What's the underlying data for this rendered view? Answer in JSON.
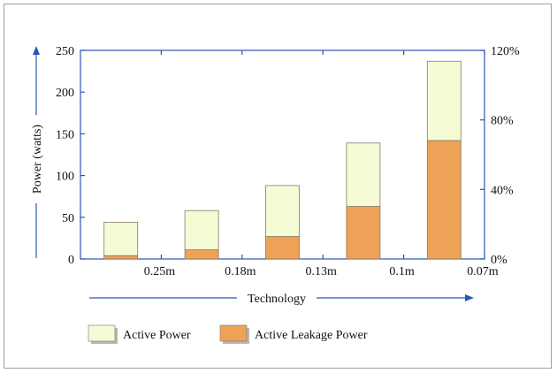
{
  "chart_data": {
    "type": "bar",
    "stacked": true,
    "xlabel": "Technology",
    "ylabel": "Power (watts)",
    "ylim": [
      0,
      250
    ],
    "y_ticks": [
      0,
      50,
      100,
      150,
      200,
      250
    ],
    "y2_ticks": [
      "0%",
      "40%",
      "80%",
      "120%"
    ],
    "x_tick_labels": [
      "0.25m",
      "0.18m",
      "0.13m",
      "0.1m",
      "0.07m"
    ],
    "series": [
      {
        "name": "Active Leakage Power",
        "color": "#eda257",
        "values": [
          4,
          11,
          27,
          63,
          142
        ]
      },
      {
        "name": "Active Power",
        "color": "#f4fbd5",
        "values": [
          40,
          47,
          61,
          76,
          95
        ]
      }
    ],
    "grid": false,
    "legend_position": "bottom-left"
  }
}
